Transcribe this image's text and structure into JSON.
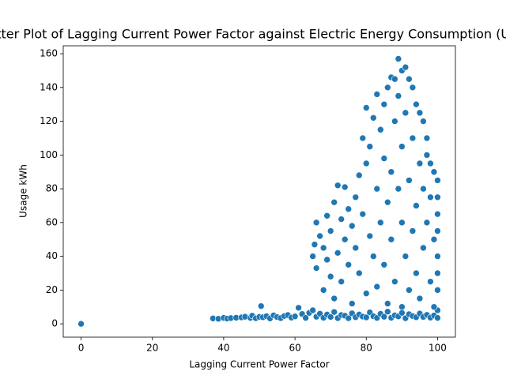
{
  "chart_data": {
    "type": "scatter",
    "title": "Scatter Plot of Lagging Current Power Factor against Electric Energy Consumption (Usage)",
    "x_label": "Lagging Current Power Factor",
    "y_label": "Usage kWh",
    "xlim": [
      -5,
      105
    ],
    "ylim": [
      -7.9,
      164.7
    ],
    "xticks": [
      0,
      20,
      40,
      60,
      80,
      100
    ],
    "yticks": [
      0,
      20,
      40,
      60,
      80,
      100,
      120,
      140,
      160
    ],
    "color": "#1f77b4",
    "x": [
      0,
      37,
      38.5,
      40,
      41,
      42,
      43.5,
      45,
      46,
      47.5,
      48,
      49,
      50,
      50.5,
      51,
      52,
      53,
      54,
      55,
      56,
      57,
      58,
      59,
      60,
      61,
      62,
      63,
      64,
      65,
      66,
      67,
      68,
      69,
      70,
      71,
      72,
      73,
      74,
      75,
      76,
      77,
      78,
      79,
      80,
      81,
      82,
      83,
      84,
      85,
      86,
      87,
      88,
      89,
      90,
      91,
      92,
      93,
      94,
      95,
      96,
      97,
      98,
      99,
      100,
      100,
      65,
      65.5,
      66,
      66,
      67,
      68,
      68,
      69,
      69,
      70,
      70,
      71,
      71,
      72,
      72,
      73,
      73,
      74,
      74,
      75,
      75,
      76,
      76,
      77,
      77,
      78,
      78,
      79,
      79,
      80,
      80,
      80,
      81,
      81,
      82,
      82,
      83,
      83,
      83,
      84,
      84,
      85,
      85,
      85,
      86,
      86,
      86,
      87,
      87,
      87,
      88,
      88,
      88,
      89,
      89,
      89,
      90,
      90,
      90,
      90,
      91,
      91,
      91,
      92,
      92,
      92,
      93,
      93,
      93,
      94,
      94,
      94,
      95,
      95,
      95,
      96,
      96,
      96,
      97,
      97,
      97,
      98,
      98,
      98,
      99,
      99,
      99,
      100,
      100,
      100,
      100,
      100,
      100,
      100
    ],
    "y": [
      0,
      3.2,
      3,
      3.5,
      3.1,
      3.4,
      3.6,
      3.8,
      4.2,
      3.5,
      4.8,
      3.3,
      4.1,
      10.5,
      3.9,
      4.5,
      3.2,
      5,
      4,
      3.4,
      4.6,
      5.2,
      3.7,
      4.4,
      9.5,
      5.8,
      3.5,
      6.5,
      8,
      4.2,
      6,
      3.6,
      5.5,
      4.1,
      7,
      3.4,
      5.2,
      4.8,
      3.3,
      6.2,
      3.9,
      5.5,
      4.3,
      3.8,
      6.8,
      4.5,
      3.5,
      5.9,
      4.2,
      7.2,
      3.6,
      5,
      4.4,
      6.5,
      3.3,
      5.7,
      4.6,
      3.9,
      6.1,
      4.1,
      5.3,
      3.7,
      4.9,
      3.5,
      8,
      40,
      47,
      60,
      33,
      52,
      45,
      20,
      38,
      64,
      55,
      28,
      72,
      15,
      42,
      82,
      62,
      25,
      81,
      50,
      35,
      68,
      12,
      58,
      75,
      45,
      88,
      30,
      110,
      65,
      128,
      18,
      95,
      52,
      105,
      122,
      40,
      136,
      80,
      22,
      115,
      60,
      98,
      130,
      35,
      140,
      72,
      12,
      146,
      90,
      50,
      120,
      145,
      25,
      135,
      80,
      157,
      150,
      105,
      60,
      10,
      152,
      125,
      40,
      145,
      85,
      20,
      140,
      110,
      55,
      130,
      70,
      30,
      125,
      95,
      15,
      120,
      80,
      45,
      110,
      60,
      100,
      95,
      75,
      25,
      90,
      50,
      10,
      85,
      65,
      40,
      20,
      30,
      55,
      75
    ]
  }
}
